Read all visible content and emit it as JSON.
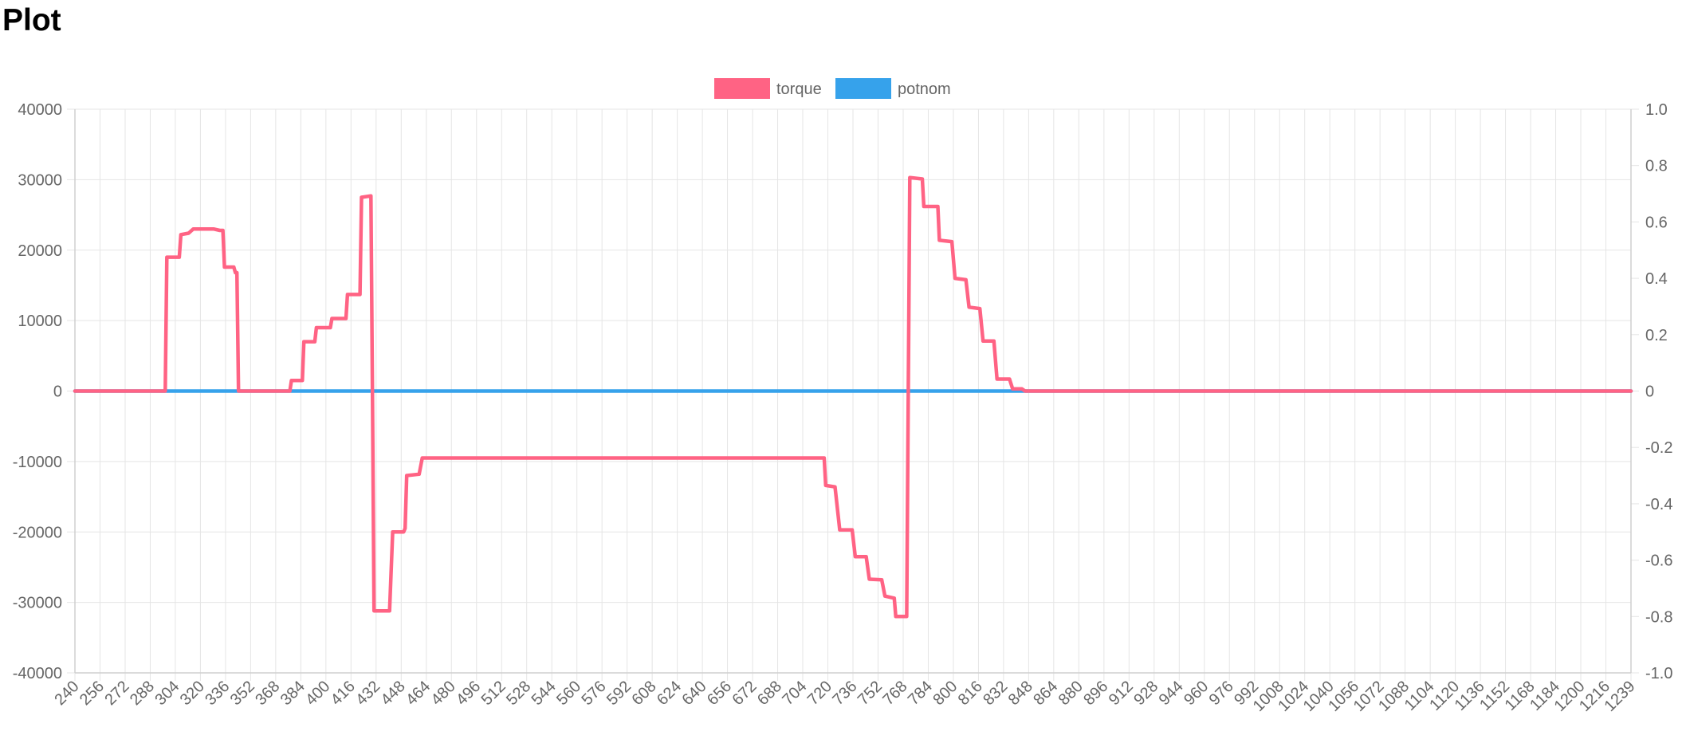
{
  "page": {
    "title": "Plot"
  },
  "colors": {
    "torque": "#ff6384",
    "potnom": "#36a2eb",
    "grid": "#e5e5e5",
    "tick_text": "#666666"
  },
  "chart_data": {
    "type": "line",
    "title": "",
    "xlabel": "",
    "ylabel": "",
    "legend_position": "top-center",
    "grid": true,
    "x_ticks": [
      "240",
      "256",
      "272",
      "288",
      "304",
      "320",
      "336",
      "352",
      "368",
      "384",
      "400",
      "416",
      "432",
      "448",
      "464",
      "480",
      "496",
      "512",
      "528",
      "544",
      "560",
      "576",
      "592",
      "608",
      "624",
      "640",
      "656",
      "672",
      "688",
      "704",
      "720",
      "736",
      "752",
      "768",
      "784",
      "800",
      "816",
      "832",
      "848",
      "864",
      "880",
      "896",
      "912",
      "928",
      "944",
      "960",
      "976",
      "992",
      "1008",
      "1024",
      "1040",
      "1056",
      "1072",
      "1088",
      "1104",
      "1120",
      "1136",
      "1152",
      "1168",
      "1184",
      "1200",
      "1216",
      "1239"
    ],
    "y_left": {
      "range": [
        -40000,
        40000
      ],
      "ticks": [
        "40000",
        "30000",
        "20000",
        "10000",
        "0",
        "-10000",
        "-20000",
        "-30000",
        "-40000"
      ]
    },
    "y_right": {
      "range": [
        -1.0,
        1.0
      ],
      "ticks": [
        "1.0",
        "0.8",
        "0.6",
        "0.4",
        "0.2",
        "0",
        "-0.2",
        "-0.4",
        "-0.6",
        "-0.8",
        "-1.0"
      ]
    },
    "series": [
      {
        "name": "torque",
        "axis": "left",
        "points": [
          [
            240,
            0
          ],
          [
            298,
            0
          ],
          [
            299,
            19000
          ],
          [
            307,
            19000
          ],
          [
            308,
            22200
          ],
          [
            313,
            22400
          ],
          [
            316,
            23000
          ],
          [
            329,
            23000
          ],
          [
            333,
            22800
          ],
          [
            335,
            22800
          ],
          [
            336,
            17600
          ],
          [
            342,
            17600
          ],
          [
            343,
            16800
          ],
          [
            344,
            16800
          ],
          [
            345,
            0
          ],
          [
            378,
            0
          ],
          [
            379,
            1500
          ],
          [
            386,
            1500
          ],
          [
            387,
            7000
          ],
          [
            394,
            7000
          ],
          [
            395,
            9000
          ],
          [
            404,
            9000
          ],
          [
            405,
            10300
          ],
          [
            414,
            10300
          ],
          [
            415,
            13700
          ],
          [
            423,
            13700
          ],
          [
            424,
            27500
          ],
          [
            430,
            27700
          ],
          [
            431,
            0
          ],
          [
            432,
            -31200
          ],
          [
            442,
            -31200
          ],
          [
            444,
            -20000
          ],
          [
            451,
            -20000
          ],
          [
            452,
            -19500
          ],
          [
            453,
            -12000
          ],
          [
            461,
            -11800
          ],
          [
            463,
            -9500
          ],
          [
            721,
            -9500
          ],
          [
            722,
            -13400
          ],
          [
            728,
            -13600
          ],
          [
            731,
            -19700
          ],
          [
            739,
            -19700
          ],
          [
            741,
            -23500
          ],
          [
            748,
            -23500
          ],
          [
            750,
            -26700
          ],
          [
            758,
            -26800
          ],
          [
            760,
            -29100
          ],
          [
            766,
            -29400
          ],
          [
            767,
            -32000
          ],
          [
            774,
            -32000
          ],
          [
            775,
            0
          ],
          [
            776,
            30300
          ],
          [
            784,
            30100
          ],
          [
            785,
            26200
          ],
          [
            794,
            26200
          ],
          [
            795,
            21400
          ],
          [
            803,
            21200
          ],
          [
            805,
            16000
          ],
          [
            812,
            15800
          ],
          [
            814,
            11900
          ],
          [
            821,
            11700
          ],
          [
            823,
            7100
          ],
          [
            830,
            7100
          ],
          [
            832,
            1700
          ],
          [
            840,
            1700
          ],
          [
            842,
            300
          ],
          [
            848,
            300
          ],
          [
            850,
            0
          ],
          [
            1239,
            0
          ]
        ]
      },
      {
        "name": "potnom",
        "axis": "right",
        "points": [
          [
            240,
            0
          ],
          [
            1239,
            0
          ]
        ]
      }
    ]
  }
}
